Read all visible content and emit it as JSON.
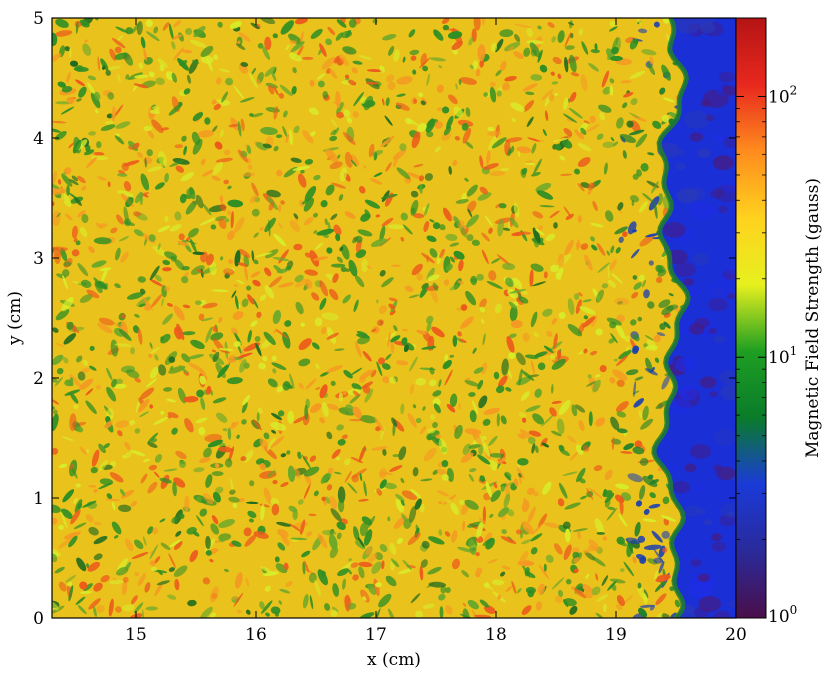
{
  "chart_data": {
    "type": "heatmap",
    "xlabel": "x  (cm)",
    "ylabel": "y  (cm)",
    "xlim": [
      14.3,
      20
    ],
    "ylim": [
      0,
      5
    ],
    "x_ticks": [
      "15",
      "16",
      "17",
      "18",
      "19",
      "20"
    ],
    "x_tick_values": [
      15,
      16,
      17,
      18,
      19,
      20
    ],
    "y_ticks": [
      "0",
      "1",
      "2",
      "3",
      "4",
      "5"
    ],
    "y_tick_values": [
      0,
      1,
      2,
      3,
      4,
      5
    ],
    "colorbar": {
      "label": "Magnetic Field Strength  (gauss)",
      "scale": "log",
      "range": [
        1,
        200
      ],
      "tick_labels": [
        {
          "base": "10",
          "exp": "0",
          "value": 1
        },
        {
          "base": "10",
          "exp": "1",
          "value": 10
        },
        {
          "base": "10",
          "exp": "2",
          "value": 100
        }
      ],
      "colormap": [
        "#4a0f4a",
        "#2a2a9a",
        "#1a3ad8",
        "#0a7c2a",
        "#1e9e22",
        "#e6f01e",
        "#ffd21e",
        "#ff8c1e",
        "#e8281e",
        "#b41414"
      ]
    },
    "field_description": {
      "turbulent_region_x": [
        14.3,
        19.45
      ],
      "turbulent_field_gauss_typical": [
        10,
        100
      ],
      "ambient_region_x": [
        19.45,
        20
      ],
      "ambient_field_gauss_typical": [
        1,
        3
      ]
    },
    "colors": {
      "turbulent_base": "#eac21c",
      "turbulent_green": "#2f8f24",
      "turbulent_red": "#ec5a1c",
      "front_green": "#1f7f2a",
      "ambient_blue": "#1a2fd6",
      "ambient_purple": "#4a1a7a"
    }
  }
}
